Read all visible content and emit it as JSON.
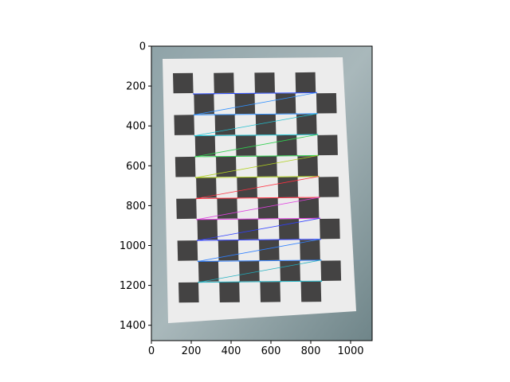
{
  "figure": {
    "image_description_icon": "chessboard-calibration-photo",
    "x_ticks": [
      "0",
      "200",
      "400",
      "600",
      "800",
      "1000"
    ],
    "y_ticks": [
      "0",
      "200",
      "400",
      "600",
      "800",
      "1000",
      "1200",
      "1400"
    ],
    "x_range": [
      0,
      1108
    ],
    "y_range": [
      0,
      1477
    ],
    "corner_grid": {
      "rows": 10,
      "cols": 7
    },
    "row_colors": [
      "#3050ff",
      "#3090ff",
      "#20c0d0",
      "#30d050",
      "#b0d020",
      "#ff3040",
      "#e040e0",
      "#3040ff",
      "#3080ff",
      "#20b0c0"
    ]
  }
}
